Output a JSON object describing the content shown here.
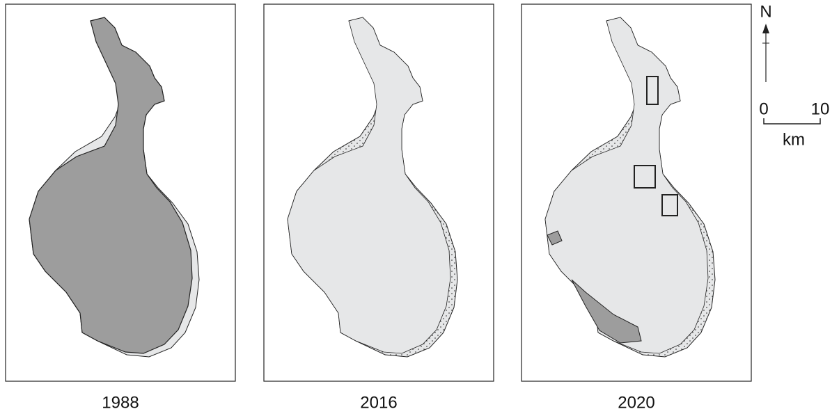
{
  "panels": [
    {
      "label": "1988"
    },
    {
      "label": "2016"
    },
    {
      "label": "2020"
    }
  ],
  "north": "N",
  "scale": {
    "start": "0",
    "end": "10",
    "unit": "km"
  }
}
